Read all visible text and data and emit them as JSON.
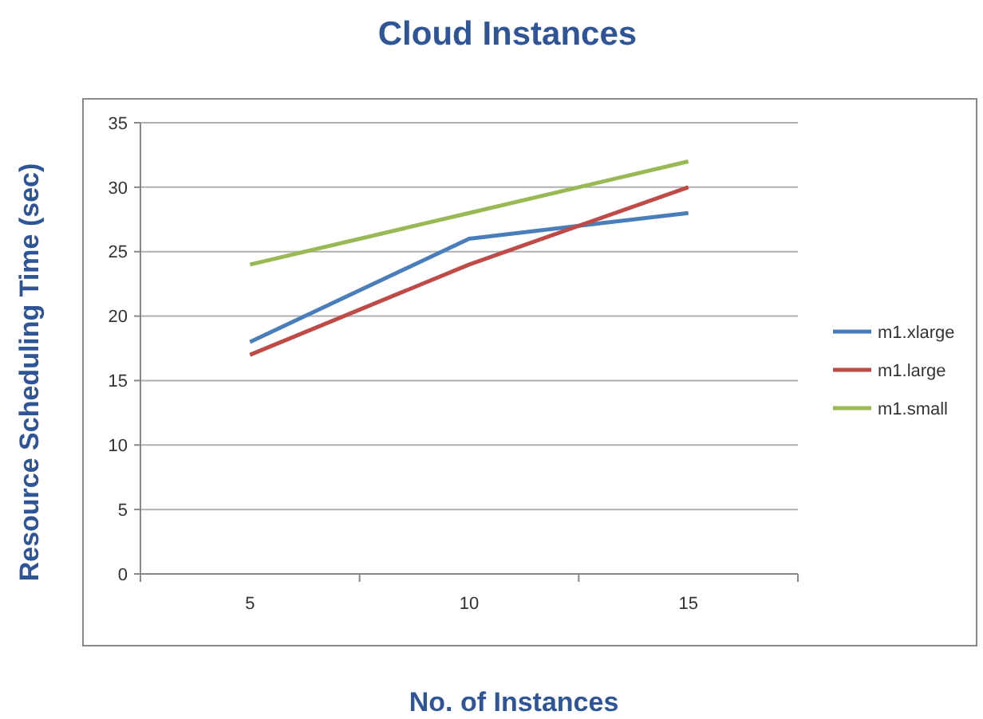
{
  "chart_data": {
    "type": "line",
    "title": "Cloud Instances",
    "xlabel": "No. of Instances",
    "ylabel": "Resource Scheduling Time (sec)",
    "categories": [
      "5",
      "10",
      "15"
    ],
    "series": [
      {
        "name": "m1.xlarge",
        "color": "#4a7ebb",
        "values": [
          18,
          26,
          28
        ]
      },
      {
        "name": "m1.large",
        "color": "#be4b48",
        "values": [
          17,
          24,
          30
        ]
      },
      {
        "name": "m1.small",
        "color": "#98b954",
        "values": [
          24,
          28,
          32
        ]
      }
    ],
    "ylim": [
      0,
      35
    ],
    "yticks": [
      0,
      5,
      10,
      15,
      20,
      25,
      30,
      35
    ],
    "grid": "y",
    "legend": "right",
    "marker": "none",
    "line_style": "solid"
  }
}
